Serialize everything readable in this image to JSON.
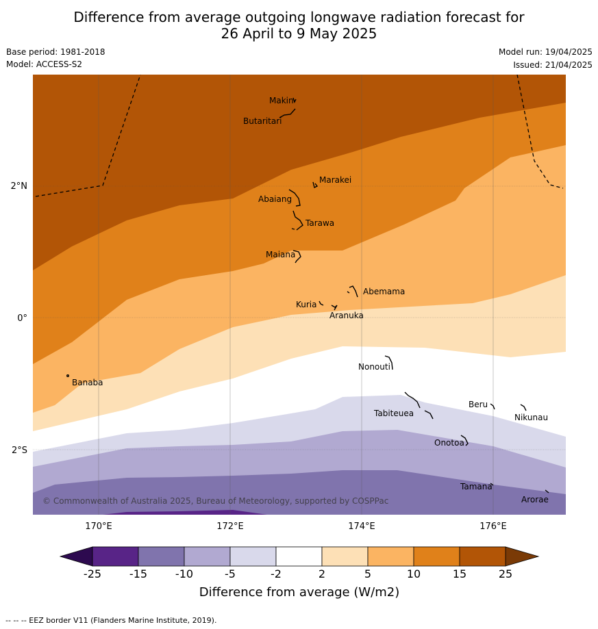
{
  "title": {
    "line1": "Difference from average outgoing longwave radiation forecast for",
    "line2": "26 April to 9 May 2025"
  },
  "meta": {
    "base_period": "Base period: 1981-2018",
    "model": "Model: ACCESS-S2",
    "model_run": "Model run: 19/04/2025",
    "issued": "Issued: 21/04/2025"
  },
  "map": {
    "lon_ticks": [
      "170°E",
      "172°E",
      "174°E",
      "176°E"
    ],
    "lat_ticks": [
      "2°N",
      "0°",
      "2°S"
    ],
    "copyright": "© Commonwealth of Australia 2025, Bureau of Meteorology, supported by COSPPac",
    "places": [
      {
        "name": "Makin",
        "key": "makin"
      },
      {
        "name": "Butaritari",
        "key": "butaritari"
      },
      {
        "name": "Marakei",
        "key": "marakei"
      },
      {
        "name": "Abaiang",
        "key": "abaiang"
      },
      {
        "name": "Tarawa",
        "key": "tarawa"
      },
      {
        "name": "Maiana",
        "key": "maiana"
      },
      {
        "name": "Abemama",
        "key": "abemama"
      },
      {
        "name": "Kuria",
        "key": "kuria"
      },
      {
        "name": "Aranuka",
        "key": "aranuka"
      },
      {
        "name": "Nonouti",
        "key": "nonouti"
      },
      {
        "name": "Banaba",
        "key": "banaba"
      },
      {
        "name": "Beru",
        "key": "beru"
      },
      {
        "name": "Tabiteuea",
        "key": "tabiteuea"
      },
      {
        "name": "Nikunau",
        "key": "nikunau"
      },
      {
        "name": "Onotoa",
        "key": "onotoa"
      },
      {
        "name": "Tamana",
        "key": "tamana"
      },
      {
        "name": "Arorae",
        "key": "arorae"
      }
    ]
  },
  "colorbar": {
    "title": "Difference from average (W/m2)",
    "ticks": [
      "-25",
      "-15",
      "-10",
      "-5",
      "-2",
      "2",
      "5",
      "10",
      "15",
      "25"
    ],
    "colors": [
      "#582487",
      "#8074ad",
      "#b1a9d1",
      "#d9d9eb",
      "#ffffff",
      "#fde0b6",
      "#fbb462",
      "#e0811a",
      "#b25506"
    ],
    "under_color": "#2d0a4f",
    "over_color": "#7a3a06"
  },
  "footnote": "--  --  -- EEZ border V11 (Flanders Marine Institute, 2019)."
}
